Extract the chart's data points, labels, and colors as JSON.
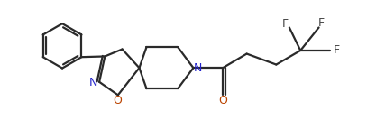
{
  "bg_color": "#ffffff",
  "line_color": "#2a2a2a",
  "atom_colors": {
    "N": "#2222cc",
    "O": "#bb4400",
    "F": "#444444"
  },
  "line_width": 1.6,
  "font_size": 8.5,
  "xlim": [
    0,
    10.5
  ],
  "ylim": [
    0,
    4.2
  ]
}
